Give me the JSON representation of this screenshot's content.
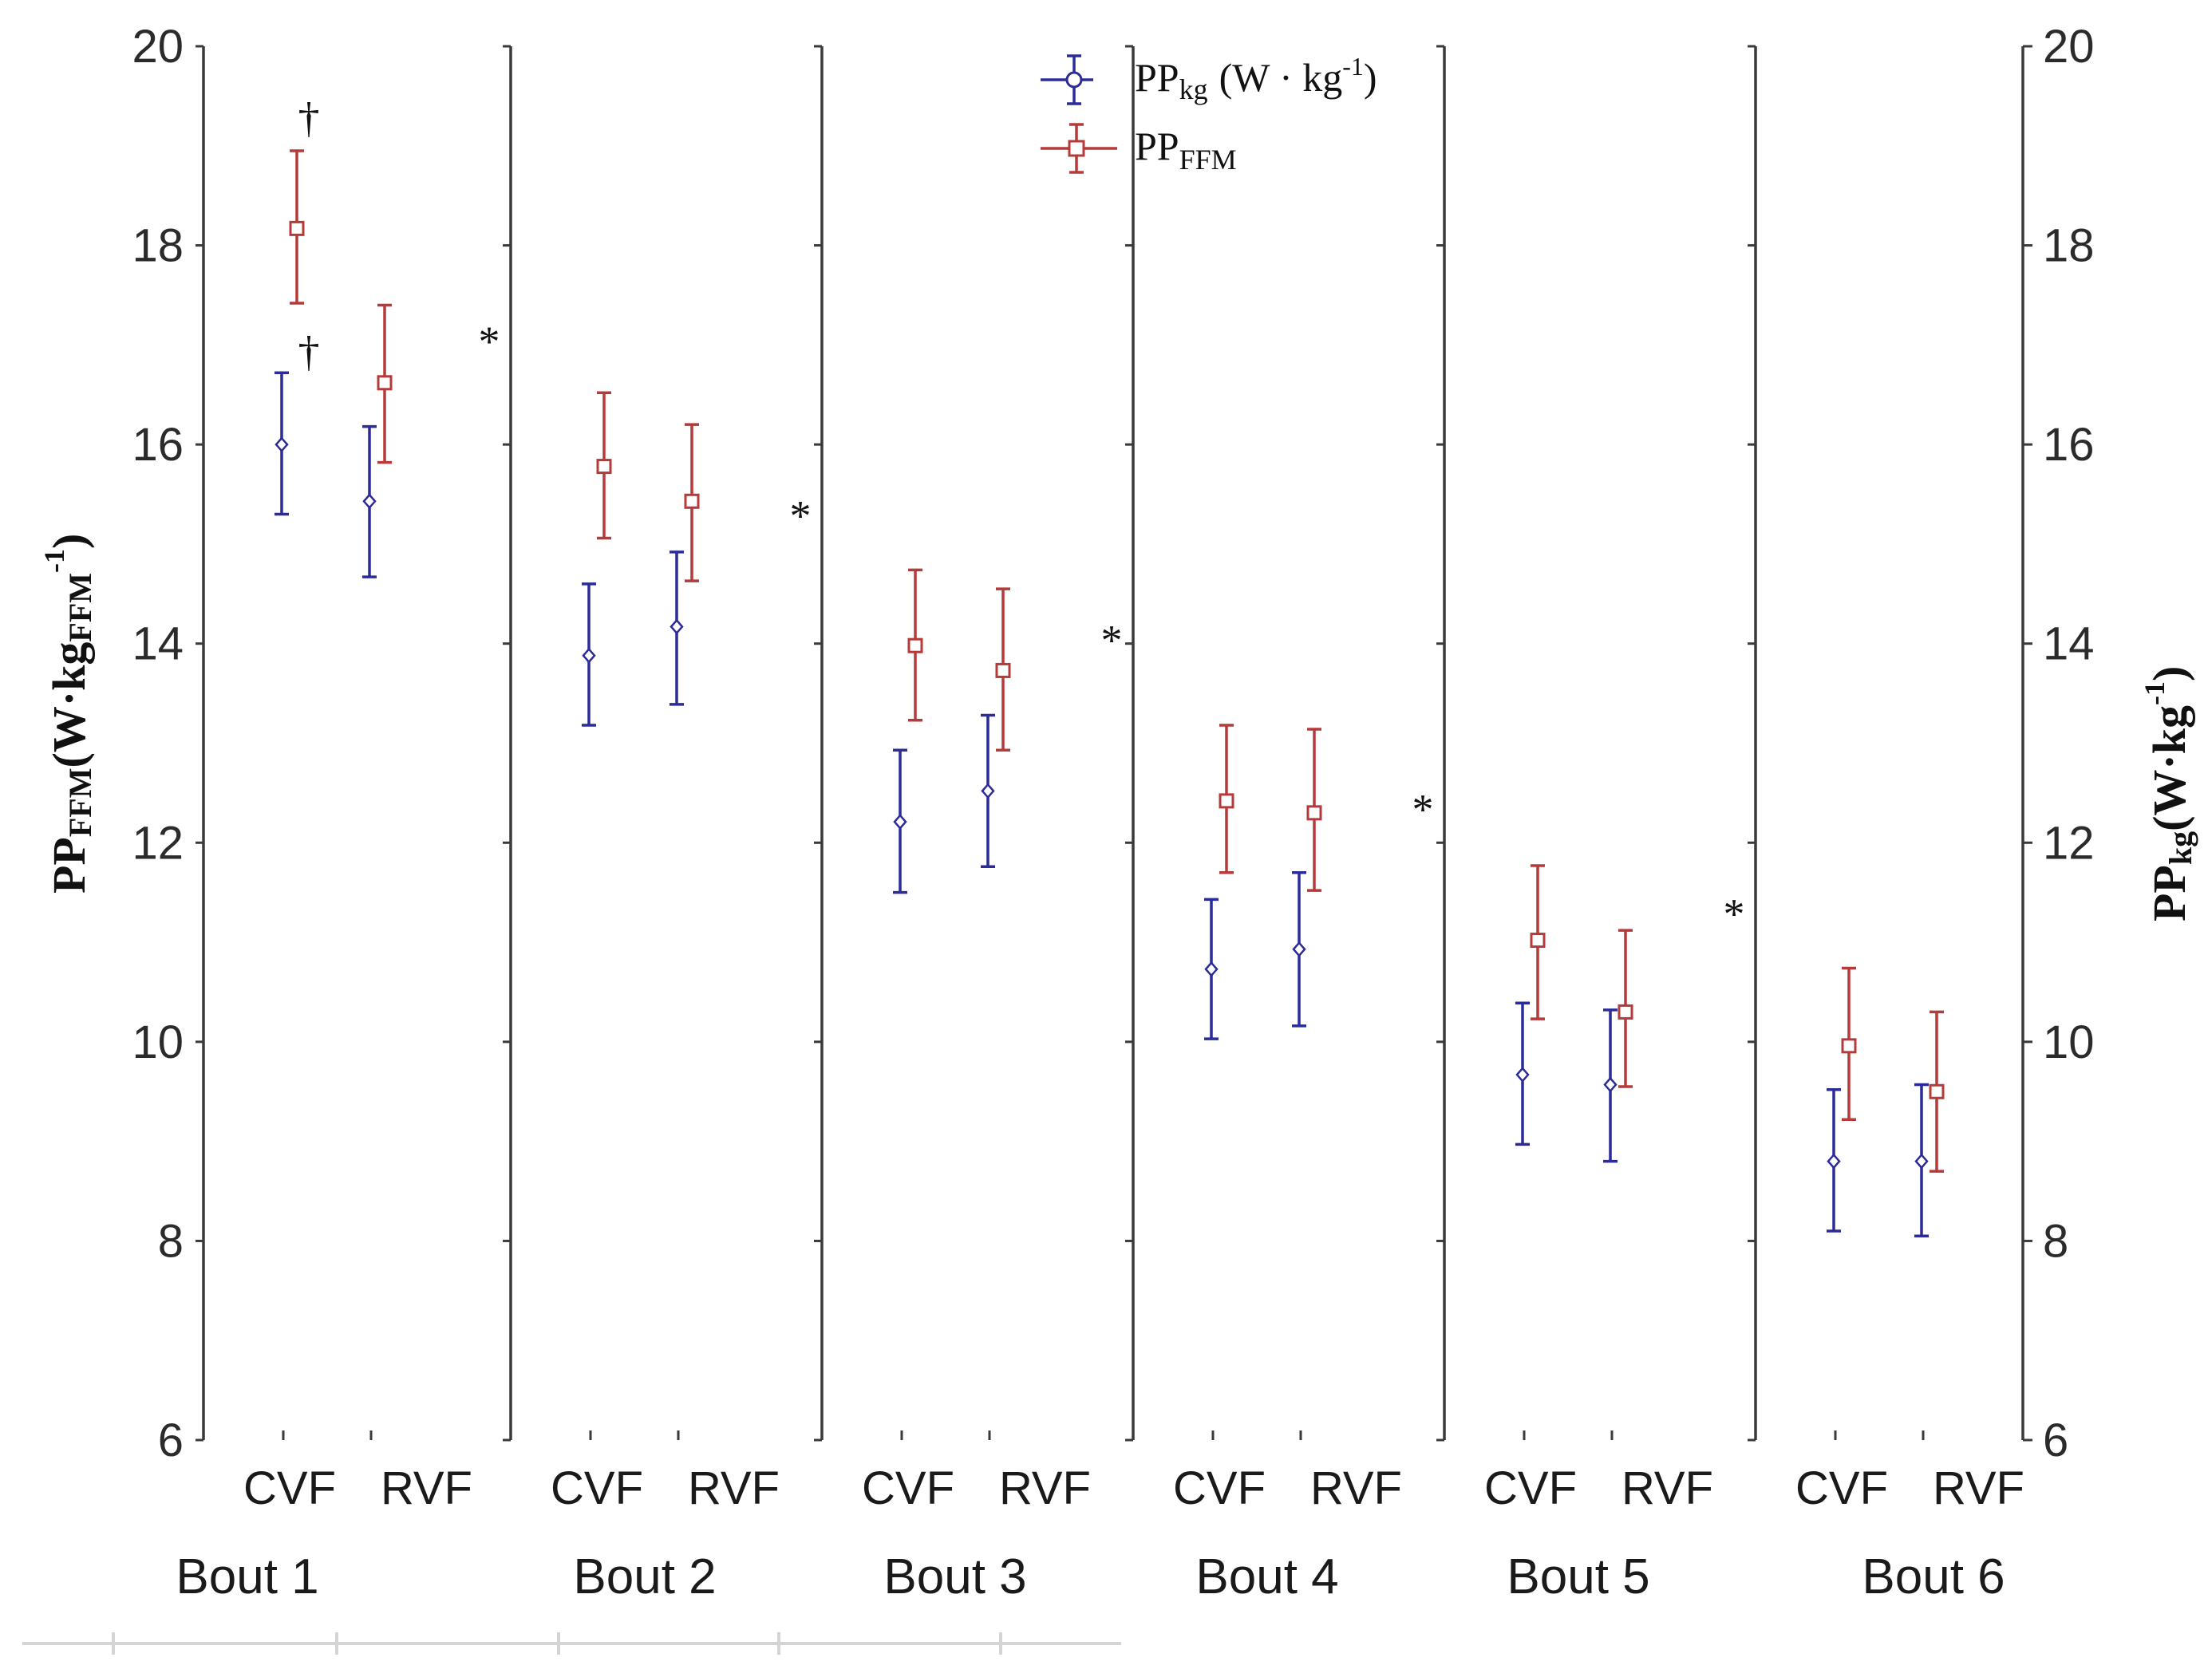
{
  "chart_data": {
    "type": "scatter",
    "subtype": "mean-with-error-bars",
    "panels": [
      "Bout 1",
      "Bout 2",
      "Bout 3",
      "Bout 4",
      "Bout 5",
      "Bout 6"
    ],
    "categories": [
      "CVF",
      "RVF"
    ],
    "series": [
      {
        "name": "PPkg",
        "legend_main": "PP",
        "legend_sub": "kg",
        "legend_unit_pre": "(W · kg",
        "legend_sup": "-1",
        "legend_unit_post": ")",
        "marker": "diamond",
        "color": "#2b2b9a",
        "points": [
          {
            "bout": 0,
            "cat": 0,
            "mean": 16.0,
            "low": 15.3,
            "high": 16.72
          },
          {
            "bout": 0,
            "cat": 1,
            "mean": 15.43,
            "low": 14.67,
            "high": 16.18
          },
          {
            "bout": 1,
            "cat": 0,
            "mean": 13.88,
            "low": 13.18,
            "high": 14.6
          },
          {
            "bout": 1,
            "cat": 1,
            "mean": 14.17,
            "low": 13.39,
            "high": 14.92
          },
          {
            "bout": 2,
            "cat": 0,
            "mean": 12.21,
            "low": 11.5,
            "high": 12.93
          },
          {
            "bout": 2,
            "cat": 1,
            "mean": 12.52,
            "low": 11.76,
            "high": 13.28
          },
          {
            "bout": 3,
            "cat": 0,
            "mean": 10.73,
            "low": 10.03,
            "high": 11.43
          },
          {
            "bout": 3,
            "cat": 1,
            "mean": 10.93,
            "low": 10.16,
            "high": 11.7
          },
          {
            "bout": 4,
            "cat": 0,
            "mean": 9.67,
            "low": 8.97,
            "high": 10.39
          },
          {
            "bout": 4,
            "cat": 1,
            "mean": 9.57,
            "low": 8.8,
            "high": 10.32
          },
          {
            "bout": 5,
            "cat": 0,
            "mean": 8.8,
            "low": 8.1,
            "high": 9.52
          },
          {
            "bout": 5,
            "cat": 1,
            "mean": 8.8,
            "low": 8.05,
            "high": 9.57
          }
        ]
      },
      {
        "name": "PPFFM",
        "legend_main": "PP",
        "legend_sub": "FFM",
        "marker": "square",
        "color": "#b53a3a",
        "points": [
          {
            "bout": 0,
            "cat": 0,
            "mean": 18.17,
            "low": 17.42,
            "high": 18.95
          },
          {
            "bout": 0,
            "cat": 1,
            "mean": 16.62,
            "low": 15.82,
            "high": 17.4
          },
          {
            "bout": 1,
            "cat": 0,
            "mean": 15.78,
            "low": 15.06,
            "high": 16.52
          },
          {
            "bout": 1,
            "cat": 1,
            "mean": 15.43,
            "low": 14.63,
            "high": 16.2
          },
          {
            "bout": 2,
            "cat": 0,
            "mean": 13.98,
            "low": 13.23,
            "high": 14.74
          },
          {
            "bout": 2,
            "cat": 1,
            "mean": 13.73,
            "low": 12.93,
            "high": 14.55
          },
          {
            "bout": 3,
            "cat": 0,
            "mean": 12.42,
            "low": 11.7,
            "high": 13.18
          },
          {
            "bout": 3,
            "cat": 1,
            "mean": 12.3,
            "low": 11.52,
            "high": 13.14
          },
          {
            "bout": 4,
            "cat": 0,
            "mean": 11.02,
            "low": 10.23,
            "high": 11.77
          },
          {
            "bout": 4,
            "cat": 1,
            "mean": 10.3,
            "low": 9.55,
            "high": 11.12
          },
          {
            "bout": 5,
            "cat": 0,
            "mean": 9.96,
            "low": 9.22,
            "high": 10.74
          },
          {
            "bout": 5,
            "cat": 1,
            "mean": 9.5,
            "low": 8.7,
            "high": 10.3
          }
        ]
      }
    ],
    "y_left": {
      "label_main": "PP",
      "label_sub": "FFM",
      "label_unit_pre": "(W·kg",
      "label_unit_sub": "FFM",
      "label_sup": "-1",
      "label_unit_post": ")",
      "range": [
        6,
        20
      ],
      "ticks": [
        6,
        8,
        10,
        12,
        14,
        16,
        18,
        20
      ]
    },
    "y_right": {
      "label_main": "PP",
      "label_sub": "kg",
      "label_unit_pre": "(W·kg",
      "label_sup": "-1",
      "label_unit_post": ")",
      "range": [
        6,
        20
      ],
      "ticks": [
        6,
        8,
        10,
        12,
        14,
        16,
        18,
        20
      ]
    },
    "annotations": [
      {
        "symbol": "†",
        "bout": 0,
        "cat": 0,
        "y": 19.3
      },
      {
        "symbol": "†",
        "bout": 0,
        "cat": 0,
        "y": 16.95
      },
      {
        "symbol": "*",
        "bout": 1,
        "cat": 0,
        "y": 17.05
      },
      {
        "symbol": "*",
        "bout": 2,
        "cat": 0,
        "y": 15.3
      },
      {
        "symbol": "*",
        "bout": 3,
        "cat": 0,
        "y": 14.05
      },
      {
        "symbol": "*",
        "bout": 4,
        "cat": 0,
        "y": 12.35
      },
      {
        "symbol": "*",
        "bout": 5,
        "cat": 0,
        "y": 11.3
      }
    ],
    "legend_position": "top-center"
  }
}
